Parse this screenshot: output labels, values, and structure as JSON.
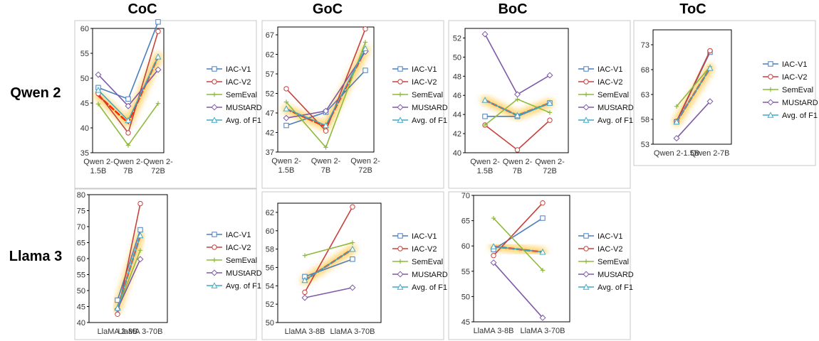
{
  "columns": [
    "CoC",
    "GoC",
    "BoC",
    "ToC"
  ],
  "rows": [
    "Qwen 2",
    "Llama 3"
  ],
  "colors": {
    "IAC-V1": "#4a7fbf",
    "IAC-V2": "#c8403c",
    "SemEval": "#8fba3c",
    "MUStARD": "#7f5aa8",
    "Avg. of F1": "#3fa9c9",
    "trend": "#ff2a00",
    "trend_glow": "#ffb300",
    "frame": "#c8c8c8"
  },
  "legend": [
    "IAC-V1",
    "IAC-V2",
    "SemEval",
    "MUStARD",
    "Avg. of F1"
  ],
  "chart_data": [
    {
      "id": "qwen-coc",
      "type": "line",
      "row": "Qwen 2",
      "column": "CoC",
      "categories": [
        [
          "Qwen 2-",
          "1.5B"
        ],
        [
          "Qwen 2-",
          "7B"
        ],
        [
          "Qwen 2-",
          "72B"
        ]
      ],
      "ylim": [
        35,
        60
      ],
      "yticks": [
        35,
        40,
        45,
        50,
        55,
        60
      ],
      "series": [
        {
          "name": "IAC-V1",
          "marker": "square",
          "values": [
            48.1,
            45.8,
            61.3
          ]
        },
        {
          "name": "IAC-V2",
          "marker": "circle",
          "values": [
            46.9,
            39.0,
            59.4
          ]
        },
        {
          "name": "SemEval",
          "marker": "plus",
          "values": [
            44.8,
            36.5,
            44.9
          ]
        },
        {
          "name": "MUStARD",
          "marker": "diamond",
          "values": [
            50.7,
            44.4,
            51.7
          ]
        },
        {
          "name": "Avg. of F1",
          "marker": "triangle",
          "values": [
            47.6,
            41.5,
            54.3
          ]
        }
      ],
      "trend": [
        46.5,
        41.0,
        54.3
      ]
    },
    {
      "id": "qwen-goc",
      "type": "line",
      "row": "Qwen 2",
      "column": "GoC",
      "categories": [
        [
          "Qwen 2-",
          "1.5B"
        ],
        [
          "Qwen 2-",
          "7B"
        ],
        [
          "Qwen 2-",
          "72B"
        ]
      ],
      "ylim": [
        37,
        69
      ],
      "yticks": [
        37,
        42,
        47,
        52,
        57,
        62,
        67
      ],
      "series": [
        {
          "name": "IAC-V1",
          "marker": "square",
          "values": [
            43.8,
            47.2,
            57.9
          ]
        },
        {
          "name": "IAC-V2",
          "marker": "circle",
          "values": [
            53.2,
            42.4,
            68.5
          ]
        },
        {
          "name": "SemEval",
          "marker": "plus",
          "values": [
            49.8,
            38.2,
            65.1
          ]
        },
        {
          "name": "MUStARD",
          "marker": "diamond",
          "values": [
            45.7,
            47.5,
            62.7
          ]
        },
        {
          "name": "Avg. of F1",
          "marker": "triangle",
          "values": [
            48.1,
            43.8,
            63.5
          ]
        }
      ],
      "trend": [
        48.0,
        43.5,
        63.2
      ]
    },
    {
      "id": "qwen-boc",
      "type": "line",
      "row": "Qwen 2",
      "column": "BoC",
      "categories": [
        [
          "Qwen 2-",
          "1.5B"
        ],
        [
          "Qwen 2-",
          "7B"
        ],
        [
          "Qwen 2-",
          "72B"
        ]
      ],
      "ylim": [
        40,
        53
      ],
      "yticks": [
        40,
        42,
        44,
        46,
        48,
        50,
        52
      ],
      "series": [
        {
          "name": "IAC-V1",
          "marker": "square",
          "values": [
            43.8,
            43.8,
            45.2
          ]
        },
        {
          "name": "IAC-V2",
          "marker": "circle",
          "values": [
            42.9,
            40.3,
            43.4
          ]
        },
        {
          "name": "SemEval",
          "marker": "plus",
          "values": [
            42.9,
            45.6,
            44.2
          ]
        },
        {
          "name": "MUStARD",
          "marker": "diamond",
          "values": [
            52.4,
            46.1,
            48.1
          ]
        },
        {
          "name": "Avg. of F1",
          "marker": "triangle",
          "values": [
            45.5,
            43.9,
            45.2
          ]
        }
      ],
      "trend": [
        45.5,
        43.9,
        45.2
      ]
    },
    {
      "id": "qwen-toc",
      "type": "line",
      "row": "Qwen 2",
      "column": "ToC",
      "categories": [
        [
          "Qwen 2-1.5B"
        ],
        [
          "Qwen 2-7B"
        ]
      ],
      "ylim": [
        53,
        76
      ],
      "yticks": [
        53,
        58,
        63,
        68,
        73
      ],
      "series": [
        {
          "name": "IAC-V1",
          "marker": "square",
          "values": [
            57.5,
            71.5
          ]
        },
        {
          "name": "IAC-V2",
          "marker": "circle",
          "values": [
            57.6,
            71.8
          ]
        },
        {
          "name": "SemEval",
          "marker": "plus",
          "values": [
            60.6,
            68.6
          ]
        },
        {
          "name": "MUStARD",
          "marker": "diamond",
          "values": [
            54.2,
            61.6
          ]
        },
        {
          "name": "Avg. of F1",
          "marker": "triangle",
          "values": [
            57.5,
            68.3
          ]
        }
      ],
      "trend": [
        57.5,
        68.3
      ]
    },
    {
      "id": "llama-coc",
      "type": "line",
      "row": "Llama 3",
      "column": "CoC",
      "categories": [
        [
          "LlaMA 3-8B"
        ],
        [
          "LlaMA 3-70B"
        ]
      ],
      "ylim": [
        40,
        80
      ],
      "yticks": [
        40,
        45,
        50,
        55,
        60,
        65,
        70,
        75,
        80
      ],
      "series": [
        {
          "name": "IAC-V1",
          "marker": "square",
          "values": [
            47.0,
            69.0
          ]
        },
        {
          "name": "IAC-V2",
          "marker": "circle",
          "values": [
            42.6,
            77.2
          ]
        },
        {
          "name": "SemEval",
          "marker": "plus",
          "values": [
            44.3,
            62.6
          ]
        },
        {
          "name": "MUStARD",
          "marker": "diamond",
          "values": [
            44.2,
            59.8
          ]
        },
        {
          "name": "Avg. of F1",
          "marker": "triangle",
          "values": [
            44.5,
            67.2
          ]
        }
      ],
      "trend": [
        44.5,
        67.2
      ]
    },
    {
      "id": "llama-goc",
      "type": "line",
      "row": "Llama 3",
      "column": "GoC",
      "categories": [
        [
          "LlaMA 3-8B"
        ],
        [
          "LlaMA 3-70B"
        ]
      ],
      "ylim": [
        50,
        63
      ],
      "yticks": [
        50,
        52,
        54,
        56,
        58,
        60,
        62
      ],
      "series": [
        {
          "name": "IAC-V1",
          "marker": "square",
          "values": [
            55.0,
            56.9
          ]
        },
        {
          "name": "IAC-V2",
          "marker": "circle",
          "values": [
            53.3,
            62.6
          ]
        },
        {
          "name": "SemEval",
          "marker": "plus",
          "values": [
            57.3,
            58.7
          ]
        },
        {
          "name": "MUStARD",
          "marker": "diamond",
          "values": [
            52.7,
            53.8
          ]
        },
        {
          "name": "Avg. of F1",
          "marker": "triangle",
          "values": [
            54.6,
            58.0
          ]
        }
      ],
      "trend": [
        54.6,
        58.0
      ]
    },
    {
      "id": "llama-boc",
      "type": "line",
      "row": "Llama 3",
      "column": "BoC",
      "categories": [
        [
          "LlaMA 3-8B"
        ],
        [
          "LlaMA 3-70B"
        ]
      ],
      "ylim": [
        45,
        70
      ],
      "yticks": [
        45,
        50,
        55,
        60,
        65,
        70
      ],
      "series": [
        {
          "name": "IAC-V1",
          "marker": "square",
          "values": [
            59.3,
            65.5
          ]
        },
        {
          "name": "IAC-V2",
          "marker": "circle",
          "values": [
            58.1,
            68.5
          ]
        },
        {
          "name": "SemEval",
          "marker": "plus",
          "values": [
            65.5,
            55.2
          ]
        },
        {
          "name": "MUStARD",
          "marker": "diamond",
          "values": [
            56.7,
            45.8
          ]
        },
        {
          "name": "Avg. of F1",
          "marker": "triangle",
          "values": [
            59.9,
            58.8
          ]
        }
      ],
      "trend": [
        59.9,
        58.8
      ]
    }
  ]
}
